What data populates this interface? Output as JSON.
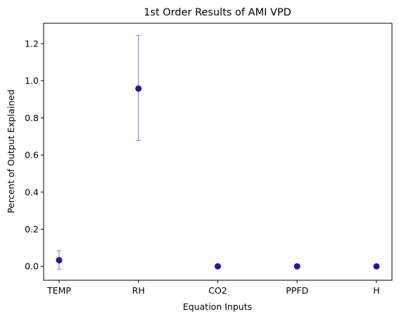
{
  "chart_data": {
    "type": "scatter",
    "title": "1st Order Results of AMI VPD",
    "xlabel": "Equation Inputs",
    "ylabel": "Percent of Output Explained",
    "categories": [
      "TEMP",
      "RH",
      "CO2",
      "PPFD",
      "H"
    ],
    "values": [
      0.033,
      0.958,
      0.0,
      0.0,
      0.0
    ],
    "error_low": [
      -0.015,
      0.678,
      0.0,
      0.0,
      0.0
    ],
    "error_high": [
      0.085,
      1.243,
      0.0,
      0.0,
      0.0
    ],
    "ylim": [
      -0.075,
      1.31
    ],
    "yticks": [
      "0.0",
      "0.2",
      "0.4",
      "0.6",
      "0.8",
      "1.0",
      "1.2"
    ],
    "ytick_values": [
      0.0,
      0.2,
      0.4,
      0.6,
      0.8,
      1.0,
      1.2
    ],
    "grid": false,
    "colors": {
      "marker": "#2a1596",
      "errorbar": "#6b4fb0"
    }
  }
}
